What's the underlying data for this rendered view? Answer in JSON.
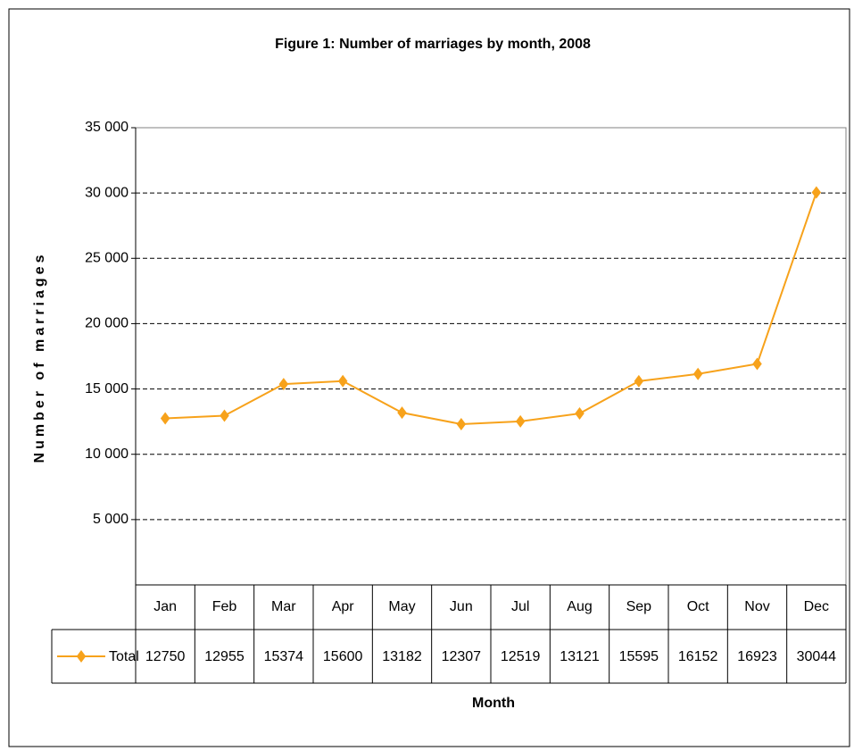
{
  "chart_data": {
    "type": "line",
    "title": "Figure 1: Number of marriages by month, 2008",
    "x_label": "Month",
    "y_label": "Number of marriages",
    "categories": [
      "Jan",
      "Feb",
      "Mar",
      "Apr",
      "May",
      "Jun",
      "Jul",
      "Aug",
      "Sep",
      "Oct",
      "Nov",
      "Dec"
    ],
    "series": [
      {
        "name": "Total",
        "color": "#f7a21b",
        "values": [
          12750,
          12955,
          15374,
          15600,
          13182,
          12307,
          12519,
          13121,
          15595,
          16152,
          16923,
          30044
        ]
      }
    ],
    "ylim": [
      0,
      35000
    ],
    "yticks": [
      {
        "value": 5000,
        "label": "5 000"
      },
      {
        "value": 10000,
        "label": "10 000"
      },
      {
        "value": 15000,
        "label": "15 000"
      },
      {
        "value": 20000,
        "label": "20 000"
      },
      {
        "value": 25000,
        "label": "25 000"
      },
      {
        "value": 30000,
        "label": "30 000"
      },
      {
        "value": 35000,
        "label": "35 000"
      }
    ],
    "grid": true
  }
}
